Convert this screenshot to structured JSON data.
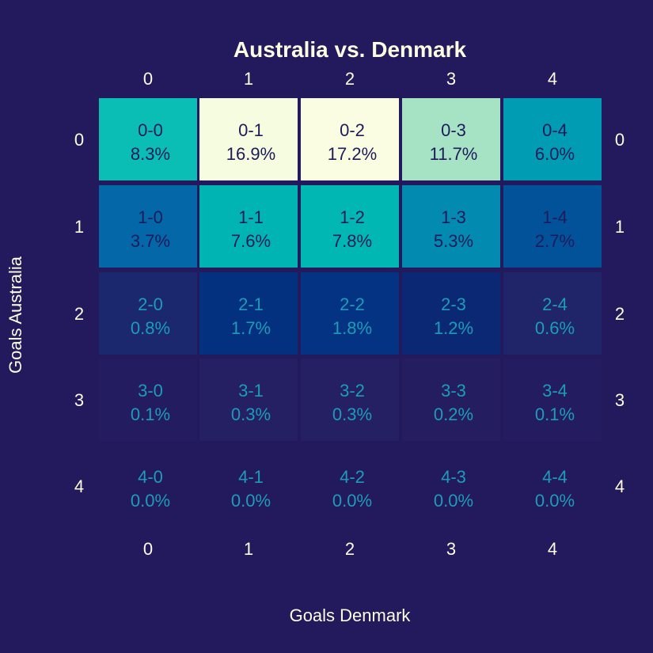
{
  "chart_data": {
    "type": "heatmap",
    "title": "Australia vs. Denmark",
    "xlabel": "Goals Denmark",
    "ylabel": "Goals Australia",
    "x_categories": [
      "0",
      "1",
      "2",
      "3",
      "4"
    ],
    "y_categories": [
      "0",
      "1",
      "2",
      "3",
      "4"
    ],
    "cells": [
      [
        {
          "score": "0-0",
          "pct": "8.3%",
          "value": 8.3
        },
        {
          "score": "0-1",
          "pct": "16.9%",
          "value": 16.9
        },
        {
          "score": "0-2",
          "pct": "17.2%",
          "value": 17.2
        },
        {
          "score": "0-3",
          "pct": "11.7%",
          "value": 11.7
        },
        {
          "score": "0-4",
          "pct": "6.0%",
          "value": 6.0
        }
      ],
      [
        {
          "score": "1-0",
          "pct": "3.7%",
          "value": 3.7
        },
        {
          "score": "1-1",
          "pct": "7.6%",
          "value": 7.6
        },
        {
          "score": "1-2",
          "pct": "7.8%",
          "value": 7.8
        },
        {
          "score": "1-3",
          "pct": "5.3%",
          "value": 5.3
        },
        {
          "score": "1-4",
          "pct": "2.7%",
          "value": 2.7
        }
      ],
      [
        {
          "score": "2-0",
          "pct": "0.8%",
          "value": 0.8
        },
        {
          "score": "2-1",
          "pct": "1.7%",
          "value": 1.7
        },
        {
          "score": "2-2",
          "pct": "1.8%",
          "value": 1.8
        },
        {
          "score": "2-3",
          "pct": "1.2%",
          "value": 1.2
        },
        {
          "score": "2-4",
          "pct": "0.6%",
          "value": 0.6
        }
      ],
      [
        {
          "score": "3-0",
          "pct": "0.1%",
          "value": 0.1
        },
        {
          "score": "3-1",
          "pct": "0.3%",
          "value": 0.3
        },
        {
          "score": "3-2",
          "pct": "0.3%",
          "value": 0.3
        },
        {
          "score": "3-3",
          "pct": "0.2%",
          "value": 0.2
        },
        {
          "score": "3-4",
          "pct": "0.1%",
          "value": 0.1
        }
      ],
      [
        {
          "score": "4-0",
          "pct": "0.0%",
          "value": 0.0
        },
        {
          "score": "4-1",
          "pct": "0.0%",
          "value": 0.0
        },
        {
          "score": "4-2",
          "pct": "0.0%",
          "value": 0.0
        },
        {
          "score": "4-3",
          "pct": "0.0%",
          "value": 0.0
        },
        {
          "score": "4-4",
          "pct": "0.0%",
          "value": 0.0
        }
      ]
    ],
    "colors": {
      "background": "#231a5e",
      "text_light": "#fdfce0",
      "text_dark": "#1e1b5a",
      "text_mid": "#1c9cb8"
    }
  }
}
